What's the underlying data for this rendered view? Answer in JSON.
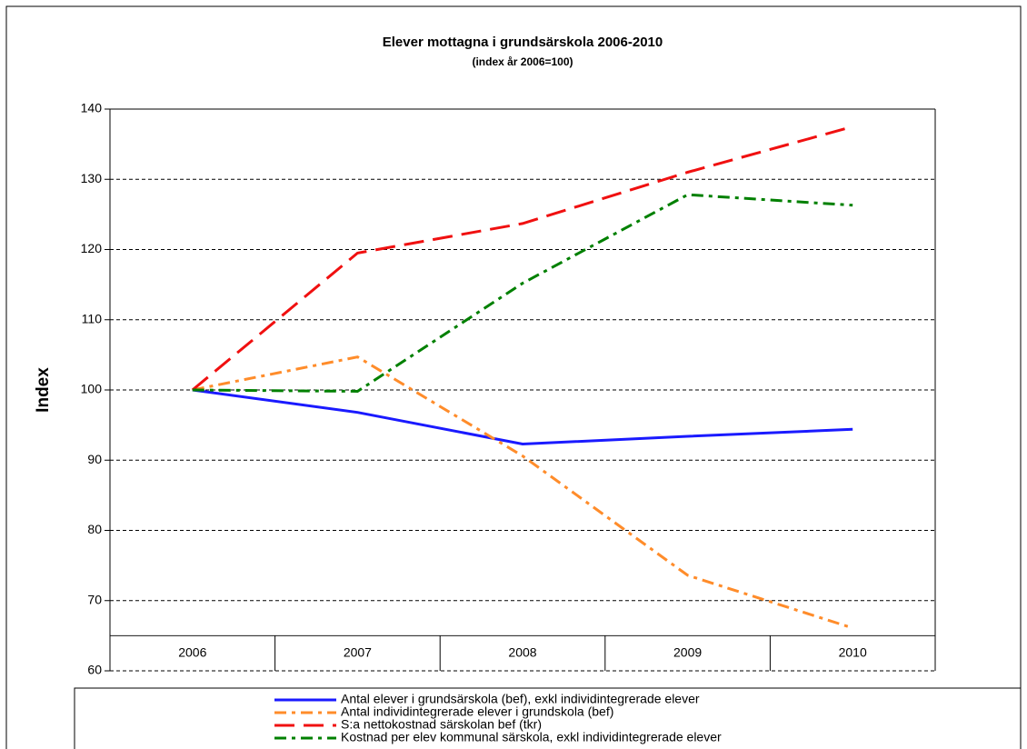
{
  "chart_data": {
    "type": "line",
    "title": "Elever mottagna i grundsärskola 2006-2010",
    "subtitle": "(index år 2006=100)",
    "y_label": "Index",
    "categories": [
      "2006",
      "2007",
      "2008",
      "2009",
      "2010"
    ],
    "series": [
      {
        "name": "Antal elever i grundsärskola (bef), exkl individintegrerade elever",
        "color": "#1a1aff",
        "style": "solid",
        "values": [
          100,
          96.8,
          92.3,
          93.4,
          94.4
        ]
      },
      {
        "name": "Antal individintegrerade elever i grundskola (bef)",
        "color": "#ff8c2a",
        "style": "dash-dot",
        "values": [
          100,
          104.7,
          90.6,
          73.6,
          66.1
        ]
      },
      {
        "name": "S:a nettokostnad särskolan bef (tkr)",
        "color": "#f01010",
        "style": "dash",
        "values": [
          100,
          119.5,
          123.7,
          131.0,
          137.5
        ]
      },
      {
        "name": "Kostnad per elev kommunal särskola, exkl individintegrerade elever",
        "color": "#008000",
        "style": "dash-dot",
        "values": [
          100,
          99.8,
          115.2,
          127.8,
          126.3
        ]
      }
    ],
    "ylim": [
      60,
      140
    ],
    "yticks": [
      60,
      70,
      80,
      90,
      100,
      110,
      120,
      130,
      140
    ],
    "x_axis_at": 65,
    "grid": true,
    "legend": "bottom"
  }
}
